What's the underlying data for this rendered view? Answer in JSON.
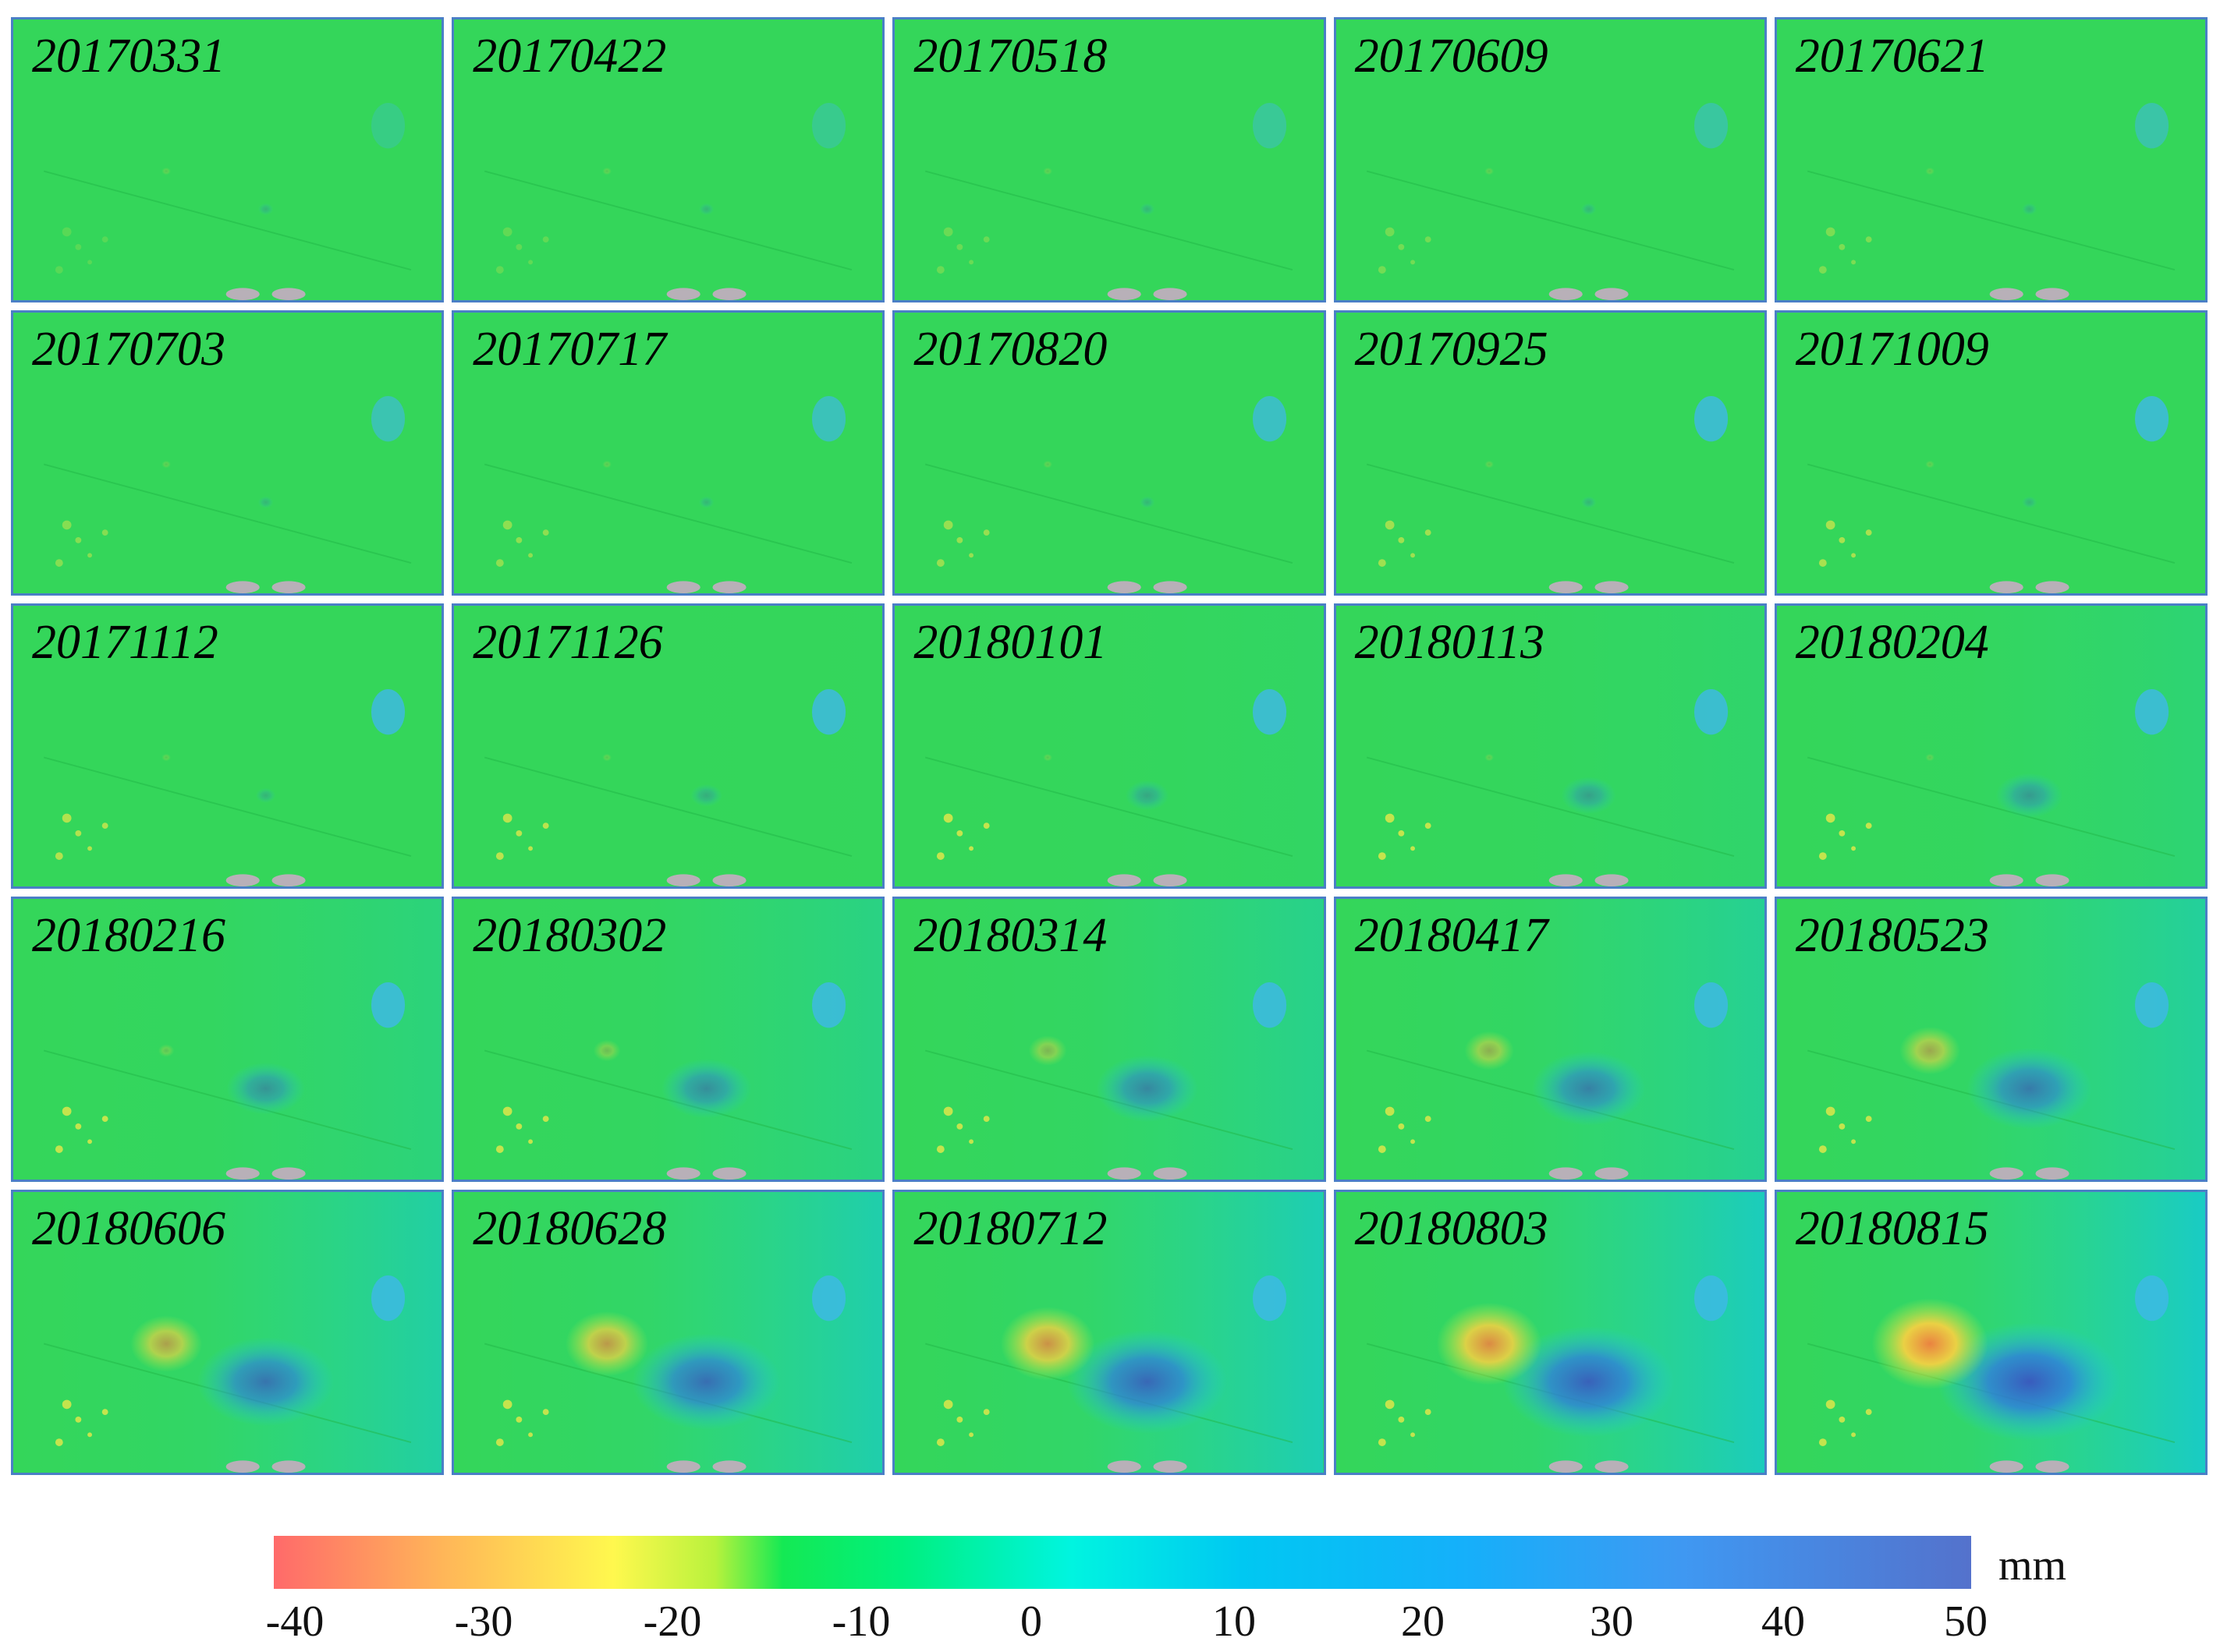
{
  "figure": {
    "panels": [
      {
        "date": "20170331"
      },
      {
        "date": "20170422"
      },
      {
        "date": "20170518"
      },
      {
        "date": "20170609"
      },
      {
        "date": "20170621"
      },
      {
        "date": "20170703"
      },
      {
        "date": "20170717"
      },
      {
        "date": "20170820"
      },
      {
        "date": "20170925"
      },
      {
        "date": "20171009"
      },
      {
        "date": "20171112"
      },
      {
        "date": "20171126"
      },
      {
        "date": "20180101"
      },
      {
        "date": "20180113"
      },
      {
        "date": "20180204"
      },
      {
        "date": "20180216"
      },
      {
        "date": "20180302"
      },
      {
        "date": "20180314"
      },
      {
        "date": "20180417"
      },
      {
        "date": "20180523"
      },
      {
        "date": "20180606"
      },
      {
        "date": "20180628"
      },
      {
        "date": "20180712"
      },
      {
        "date": "20180803"
      },
      {
        "date": "20180815"
      }
    ],
    "colorbar": {
      "unit": "mm",
      "ticks": [
        "-40",
        "-30",
        "-20",
        "-10",
        "0",
        "10",
        "20",
        "30",
        "40",
        "50"
      ],
      "colors": [
        "#ff6a6a",
        "#ffb658",
        "#fff84e",
        "#14e954",
        "#00f4e0",
        "#00c8f2",
        "#3f98f2",
        "#5472cc"
      ]
    },
    "colors": {
      "background_green": "#2fd45c",
      "frame": "#4a7fc6",
      "uplift_yellow": "#ffd040",
      "uplift_red": "#ff7040",
      "subsidence_blue": "#2f6fd8"
    }
  }
}
